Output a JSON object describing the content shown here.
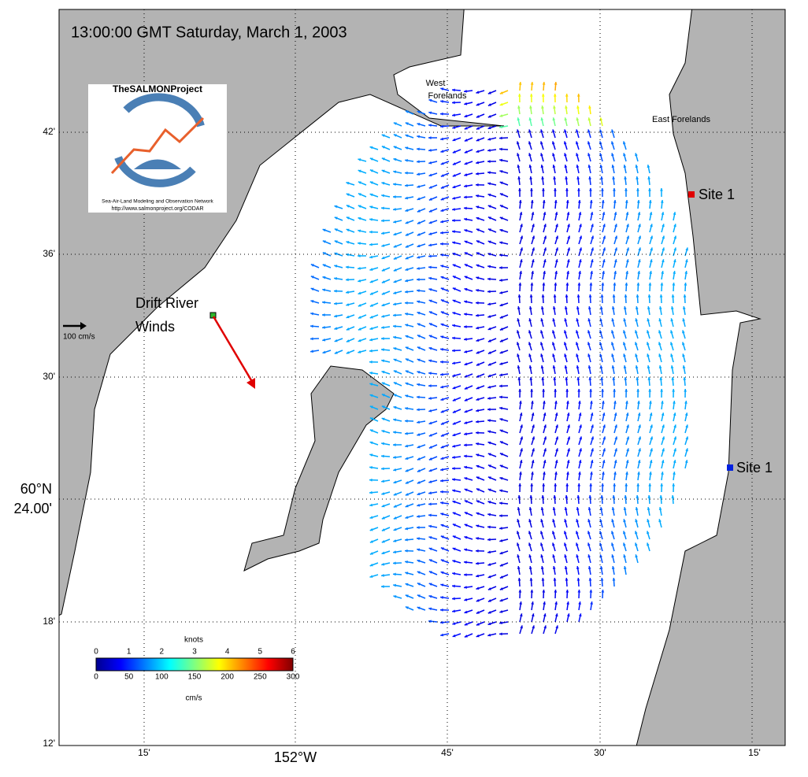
{
  "title": "13:00:00 GMT Saturday, March 1, 2003",
  "lat_labels": [
    "42'",
    "36'",
    "30'",
    "18'",
    "12'"
  ],
  "lat_center": {
    "line1": "60°N",
    "line2": "24.00'"
  },
  "lon_labels": [
    "15'",
    "152°W",
    "45'",
    "30'",
    "15'"
  ],
  "places": {
    "west": {
      "line1": "West",
      "line2": "Forelands"
    },
    "east": "East Forelands",
    "site_north": "Site 1",
    "site_south": "Site 1"
  },
  "wind_station": {
    "line1": "Drift River",
    "line2": "Winds"
  },
  "scale_label": "100 cm/s",
  "colorbar": {
    "title": "knots",
    "knots": [
      "0",
      "1",
      "2",
      "3",
      "4",
      "5",
      "6"
    ],
    "cms": [
      "0",
      "50",
      "100",
      "150",
      "200",
      "250",
      "300"
    ],
    "unit": "cm/s"
  },
  "logo": {
    "name": "TheSALMONProject",
    "subtitle": "Sea-Air-Land Modeling and Observation Network",
    "url": "http://www.salmonproject.org/CODAR"
  }
}
